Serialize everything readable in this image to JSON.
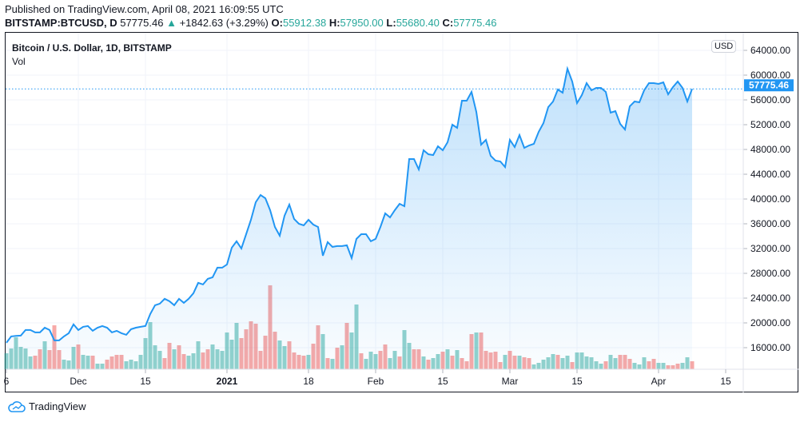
{
  "header": {
    "published": "Published on TradingView.com, April 08, 2021 16:09:55 UTC",
    "symbol": "BITSTAMP:BTCUSD, D",
    "last": "57775.46",
    "change": "+1842.63 (+3.29%)",
    "o_label": "O:",
    "o": "55912.38",
    "h_label": "H:",
    "h": "57950.00",
    "l_label": "L:",
    "l": "55680.40",
    "c_label": "C:",
    "c": "57775.46"
  },
  "legend": {
    "title": "Bitcoin / U.S. Dollar, 1D, BITSTAMP",
    "volume": "Vol"
  },
  "currency": "USD",
  "last_price_label": "57775.46",
  "footer": {
    "brand": "TradingView"
  },
  "colors": {
    "line": "#2196f3",
    "up": "#26a69a",
    "down": "#ef5350",
    "price_label": "#2196f3"
  },
  "chart_data": {
    "type": "area",
    "title": "Bitcoin / U.S. Dollar, 1D, BITSTAMP",
    "ylim": [
      12000,
      66000
    ],
    "grid": true,
    "y_ticks": [
      "16000.00",
      "20000.00",
      "24000.00",
      "28000.00",
      "32000.00",
      "36000.00",
      "40000.00",
      "44000.00",
      "48000.00",
      "52000.00",
      "56000.00",
      "60000.00",
      "64000.00"
    ],
    "x_ticks": [
      {
        "date": "2020-11-16",
        "label": "6"
      },
      {
        "date": "2020-12-01",
        "label": "Dec"
      },
      {
        "date": "2020-12-15",
        "label": "15"
      },
      {
        "date": "2021-01-01",
        "label": "2021",
        "bold": true
      },
      {
        "date": "2021-01-18",
        "label": "18"
      },
      {
        "date": "2021-02-01",
        "label": "Feb"
      },
      {
        "date": "2021-02-15",
        "label": "15"
      },
      {
        "date": "2021-03-01",
        "label": "Mar"
      },
      {
        "date": "2021-03-15",
        "label": "15"
      },
      {
        "date": "2021-04-01",
        "label": "Apr"
      },
      {
        "date": "2021-04-15",
        "label": "15"
      }
    ],
    "dates_first": "2020-11-16",
    "close": [
      16785,
      17817,
      17900,
      17946,
      18849,
      18849,
      18462,
      18462,
      19226,
      18849,
      17172,
      17172,
      17817,
      18333,
      19752,
      18849,
      19365,
      19494,
      18720,
      19226,
      19494,
      19226,
      18462,
      18720,
      18333,
      18075,
      18978,
      19226,
      19365,
      19494,
      21429,
      22848,
      23106,
      23880,
      23493,
      22848,
      23880,
      23235,
      23880,
      24783,
      26460,
      26202,
      27105,
      27363,
      28911,
      28911,
      29427,
      32136,
      33168,
      32007,
      34329,
      36651,
      39489,
      40650,
      40134,
      38199,
      35490,
      34071,
      37296,
      39102,
      36780,
      36006,
      35748,
      36651,
      35877,
      35490,
      30846,
      33039,
      32265,
      32394,
      32394,
      32523,
      30459,
      33555,
      34329,
      34329,
      33168,
      33555,
      35490,
      37683,
      37038,
      38199,
      39231,
      38844,
      46455,
      46455,
      44778,
      47874,
      47229,
      47100,
      48519,
      47874,
      49164,
      52002,
      51486,
      55872,
      55872,
      57291,
      54066,
      48777,
      49551,
      46971,
      46197,
      46068,
      45165,
      49551,
      48390,
      50325,
      48261,
      48648,
      48906,
      50841,
      52260,
      54840,
      55743,
      57678,
      57162,
      61032,
      58968,
      55485,
      56775,
      58710,
      57549,
      57936,
      57936,
      57291,
      53937,
      54195,
      52131,
      51228,
      54969,
      55743,
      55614,
      57549,
      58710,
      58710,
      58581,
      58839,
      56904,
      58065,
      58968,
      57936,
      55743,
      57775.46
    ],
    "volume_relative": [
      20,
      26,
      40,
      28,
      26,
      16,
      17,
      25,
      35,
      24,
      55,
      24,
      12,
      11,
      28,
      31,
      18,
      17,
      17,
      7,
      7,
      12,
      16,
      18,
      18,
      10,
      12,
      10,
      18,
      39,
      59,
      30,
      23,
      14,
      33,
      25,
      30,
      19,
      17,
      20,
      35,
      21,
      25,
      31,
      25,
      23,
      46,
      37,
      58,
      39,
      50,
      60,
      57,
      23,
      42,
      105,
      47,
      36,
      29,
      35,
      21,
      18,
      17,
      18,
      32,
      55,
      44,
      14,
      13,
      27,
      30,
      58,
      46,
      81,
      20,
      13,
      22,
      19,
      23,
      31,
      14,
      23,
      16,
      49,
      33,
      25,
      25,
      16,
      12,
      14,
      19,
      22,
      25,
      17,
      24,
      14,
      10,
      44,
      46,
      46,
      23,
      21,
      22,
      9,
      18,
      23,
      17,
      17,
      15,
      14,
      6,
      8,
      12,
      15,
      19,
      18,
      14,
      17,
      9,
      21,
      21,
      16,
      15,
      10,
      7,
      10,
      18,
      14,
      18,
      18,
      13,
      8,
      6,
      15,
      10,
      13,
      8,
      8,
      5,
      5,
      7,
      8,
      15,
      10
    ],
    "volume_direction": "uuuuuuddudddgguduudgudddduuuuuuuuddudduuudduuuuuudddddddduudddduddudududuuduuudduuduudduduudududdduddddduddudduuuuuduuduuuuuuduuddduuudduuddduuduuuddudduuuuudduuu"
  }
}
